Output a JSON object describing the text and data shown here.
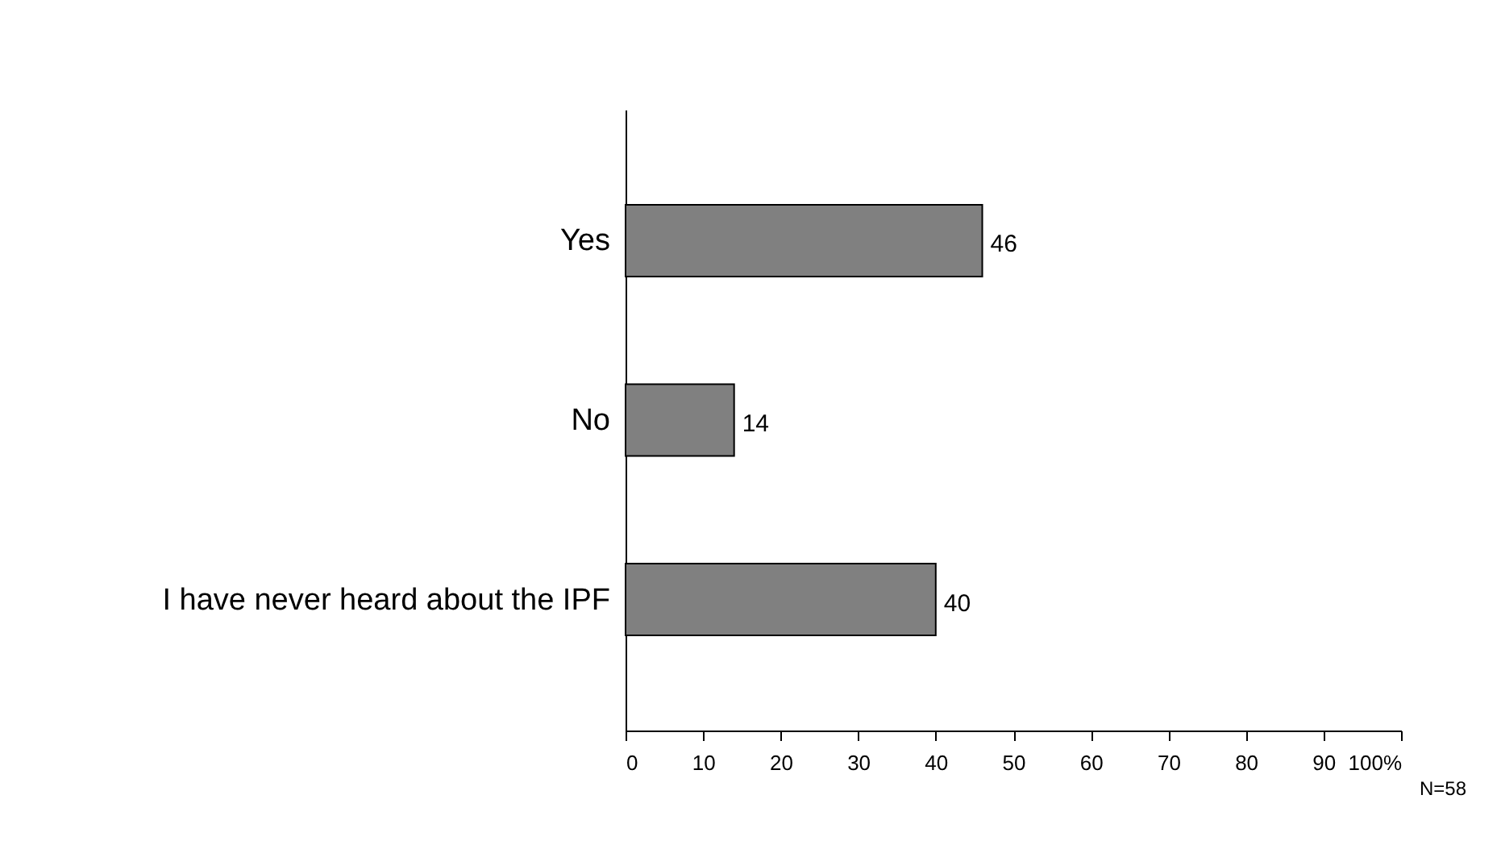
{
  "chart_data": {
    "type": "bar",
    "orientation": "horizontal",
    "categories": [
      "Yes",
      "No",
      "I have never heard about the IPF"
    ],
    "values": [
      46,
      14,
      40
    ],
    "color": "#808080",
    "data_labels": true,
    "xlim": [
      0,
      100
    ],
    "xticks": [
      0,
      10,
      20,
      30,
      40,
      50,
      60,
      70,
      80,
      90,
      {
        "value": 100,
        "label": "100%"
      }
    ],
    "grid": false,
    "annotations": [
      "N=58"
    ]
  }
}
